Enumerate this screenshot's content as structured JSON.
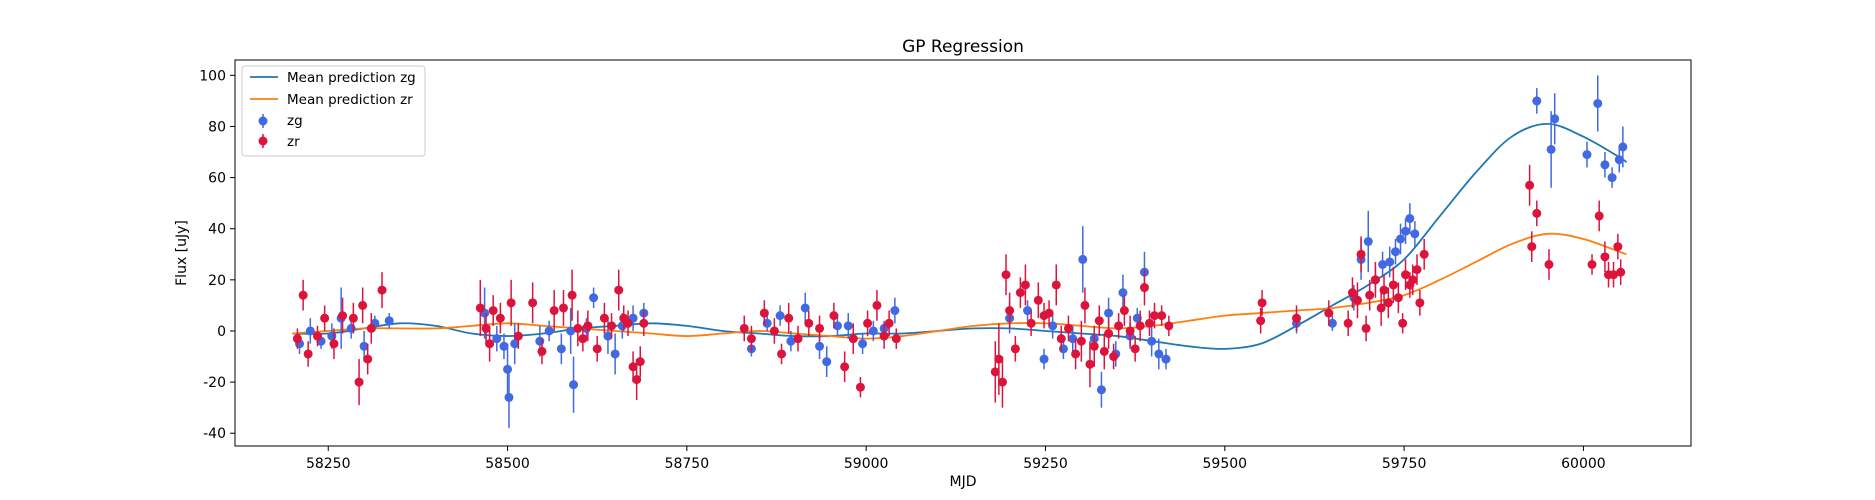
{
  "chart_data": {
    "type": "scatter",
    "title": "GP Regression",
    "xlabel": "MJD",
    "ylabel": "Flux [uJy]",
    "xlim": [
      58120,
      60150
    ],
    "ylim": [
      -45,
      106
    ],
    "xticks": [
      58250,
      58500,
      58750,
      59000,
      59250,
      59500,
      59750,
      60000
    ],
    "yticks": [
      -40,
      -20,
      0,
      20,
      40,
      60,
      80,
      100
    ],
    "legend_position": "upper-left",
    "grid": false,
    "lines": [
      {
        "name": "Mean prediction zg",
        "color": "#1f77b4",
        "x": [
          58200,
          58250,
          58300,
          58350,
          58400,
          58450,
          58500,
          58550,
          58600,
          58650,
          58700,
          58750,
          58800,
          58850,
          58900,
          58950,
          59000,
          59050,
          59100,
          59150,
          59200,
          59250,
          59300,
          59350,
          59400,
          59450,
          59500,
          59550,
          59600,
          59650,
          59700,
          59750,
          59800,
          59850,
          59900,
          59950,
          60000,
          60050,
          60060
        ],
        "y": [
          -1,
          -1,
          1,
          3,
          2,
          -1,
          -2,
          -1,
          1,
          2,
          3,
          2,
          0,
          -1,
          -2,
          -2,
          -1,
          -1,
          0,
          1,
          1,
          0,
          -1,
          -2,
          -4,
          -6,
          -7,
          -5,
          2,
          10,
          18,
          28,
          45,
          62,
          76,
          81,
          76,
          68,
          66
        ]
      },
      {
        "name": "Mean prediction zr",
        "color": "#ff7f0e",
        "x": [
          58200,
          58250,
          58300,
          58350,
          58400,
          58450,
          58500,
          58550,
          58600,
          58650,
          58700,
          58750,
          58800,
          58850,
          58900,
          58950,
          59000,
          59050,
          59100,
          59150,
          59200,
          59250,
          59300,
          59350,
          59400,
          59450,
          59500,
          59550,
          59600,
          59650,
          59700,
          59750,
          59800,
          59850,
          59900,
          59950,
          60000,
          60050,
          60060
        ],
        "y": [
          -1,
          0,
          1,
          1,
          1,
          2,
          3,
          2,
          1,
          0,
          -1,
          -2,
          -1,
          0,
          -1,
          -2,
          -3,
          -2,
          0,
          2,
          3,
          3,
          2,
          1,
          2,
          4,
          6,
          7,
          8,
          9,
          11,
          14,
          20,
          27,
          34,
          38,
          36,
          31,
          30
        ]
      }
    ],
    "series": [
      {
        "name": "zg",
        "color": "#4169e1",
        "points": [
          [
            58210,
            -5,
            4
          ],
          [
            58225,
            0,
            5
          ],
          [
            58240,
            -4,
            3
          ],
          [
            58255,
            -2,
            5
          ],
          [
            58268,
            5,
            12
          ],
          [
            58282,
            1,
            4
          ],
          [
            58300,
            -6,
            6
          ],
          [
            58315,
            3,
            3
          ],
          [
            58335,
            4,
            3
          ],
          [
            58468,
            7,
            10
          ],
          [
            58485,
            -3,
            5
          ],
          [
            58495,
            -6,
            5
          ],
          [
            58500,
            -15,
            10
          ],
          [
            58502,
            -26,
            12
          ],
          [
            58510,
            -5,
            8
          ],
          [
            58545,
            -4,
            6
          ],
          [
            58558,
            0,
            4
          ],
          [
            58575,
            -7,
            6
          ],
          [
            58588,
            0,
            9
          ],
          [
            58592,
            -21,
            11
          ],
          [
            58610,
            1,
            4
          ],
          [
            58620,
            13,
            4
          ],
          [
            58640,
            -2,
            7
          ],
          [
            58650,
            -9,
            8
          ],
          [
            58660,
            2,
            5
          ],
          [
            58675,
            5,
            5
          ],
          [
            58690,
            7,
            4
          ],
          [
            58840,
            -7,
            3
          ],
          [
            58862,
            3,
            3
          ],
          [
            58880,
            6,
            4
          ],
          [
            58895,
            -4,
            4
          ],
          [
            58915,
            9,
            6
          ],
          [
            58935,
            -6,
            5
          ],
          [
            58945,
            -12,
            6
          ],
          [
            58960,
            2,
            4
          ],
          [
            58975,
            2,
            5
          ],
          [
            58995,
            -5,
            4
          ],
          [
            59010,
            0,
            4
          ],
          [
            59025,
            1,
            3
          ],
          [
            59040,
            8,
            5
          ],
          [
            59200,
            5,
            6
          ],
          [
            59225,
            8,
            4
          ],
          [
            59248,
            -11,
            4
          ],
          [
            59260,
            2,
            5
          ],
          [
            59275,
            -7,
            4
          ],
          [
            59288,
            -3,
            5
          ],
          [
            59302,
            28,
            13
          ],
          [
            59318,
            -3,
            5
          ],
          [
            59328,
            -23,
            7
          ],
          [
            59338,
            7,
            6
          ],
          [
            59348,
            -9,
            5
          ],
          [
            59358,
            15,
            7
          ],
          [
            59368,
            -2,
            5
          ],
          [
            59378,
            5,
            4
          ],
          [
            59388,
            23,
            8
          ],
          [
            59398,
            -4,
            6
          ],
          [
            59408,
            -9,
            6
          ],
          [
            59418,
            -11,
            4
          ],
          [
            59600,
            3,
            4
          ],
          [
            59650,
            3,
            3
          ],
          [
            59680,
            13,
            5
          ],
          [
            59690,
            28,
            8
          ],
          [
            59700,
            35,
            12
          ],
          [
            59710,
            20,
            5
          ],
          [
            59720,
            26,
            5
          ],
          [
            59730,
            27,
            6
          ],
          [
            59738,
            31,
            5
          ],
          [
            59745,
            36,
            6
          ],
          [
            59752,
            39,
            5
          ],
          [
            59758,
            44,
            6
          ],
          [
            59765,
            38,
            5
          ],
          [
            59935,
            90,
            5
          ],
          [
            59955,
            71,
            15
          ],
          [
            59960,
            83,
            10
          ],
          [
            60005,
            69,
            5
          ],
          [
            60020,
            89,
            11
          ],
          [
            60030,
            65,
            5
          ],
          [
            60040,
            60,
            4
          ],
          [
            60050,
            67,
            5
          ],
          [
            60055,
            72,
            8
          ]
        ]
      },
      {
        "name": "zr",
        "color": "#dc143c",
        "points": [
          [
            58207,
            -3,
            4
          ],
          [
            58215,
            14,
            6
          ],
          [
            58222,
            -9,
            5
          ],
          [
            58235,
            -2,
            4
          ],
          [
            58245,
            5,
            5
          ],
          [
            58258,
            -5,
            6
          ],
          [
            58270,
            6,
            7
          ],
          [
            58285,
            5,
            6
          ],
          [
            58293,
            -20,
            9
          ],
          [
            58298,
            10,
            7
          ],
          [
            58305,
            -11,
            6
          ],
          [
            58310,
            1,
            6
          ],
          [
            58325,
            16,
            7
          ],
          [
            58462,
            9,
            11
          ],
          [
            58470,
            1,
            6
          ],
          [
            58475,
            -5,
            7
          ],
          [
            58480,
            8,
            6
          ],
          [
            58490,
            5,
            6
          ],
          [
            58505,
            11,
            9
          ],
          [
            58515,
            -2,
            5
          ],
          [
            58535,
            11,
            8
          ],
          [
            58548,
            -8,
            5
          ],
          [
            58565,
            8,
            8
          ],
          [
            58578,
            9,
            7
          ],
          [
            58590,
            14,
            10
          ],
          [
            58598,
            1,
            7
          ],
          [
            58605,
            -3,
            5
          ],
          [
            58612,
            2,
            6
          ],
          [
            58625,
            -7,
            5
          ],
          [
            58635,
            5,
            6
          ],
          [
            58645,
            2,
            5
          ],
          [
            58655,
            16,
            8
          ],
          [
            58662,
            5,
            5
          ],
          [
            58668,
            3,
            5
          ],
          [
            58675,
            -14,
            6
          ],
          [
            58680,
            -19,
            8
          ],
          [
            58685,
            -12,
            6
          ],
          [
            58690,
            3,
            5
          ],
          [
            58830,
            1,
            5
          ],
          [
            58840,
            -3,
            5
          ],
          [
            58858,
            7,
            5
          ],
          [
            58872,
            0,
            5
          ],
          [
            58882,
            -9,
            4
          ],
          [
            58892,
            5,
            6
          ],
          [
            58905,
            -3,
            5
          ],
          [
            58920,
            3,
            5
          ],
          [
            58935,
            1,
            5
          ],
          [
            58955,
            6,
            5
          ],
          [
            58970,
            -14,
            6
          ],
          [
            58982,
            -3,
            6
          ],
          [
            58992,
            -22,
            4
          ],
          [
            59002,
            3,
            5
          ],
          [
            59015,
            10,
            6
          ],
          [
            59025,
            -2,
            5
          ],
          [
            59032,
            3,
            5
          ],
          [
            59042,
            -3,
            4
          ],
          [
            59180,
            -16,
            12
          ],
          [
            59185,
            -11,
            14
          ],
          [
            59190,
            -20,
            10
          ],
          [
            59195,
            22,
            8
          ],
          [
            59200,
            8,
            7
          ],
          [
            59208,
            -7,
            5
          ],
          [
            59215,
            15,
            6
          ],
          [
            59222,
            18,
            8
          ],
          [
            59230,
            3,
            5
          ],
          [
            59240,
            12,
            7
          ],
          [
            59248,
            6,
            5
          ],
          [
            59255,
            7,
            5
          ],
          [
            59265,
            18,
            8
          ],
          [
            59272,
            -3,
            5
          ],
          [
            59282,
            1,
            5
          ],
          [
            59292,
            -9,
            6
          ],
          [
            59300,
            -4,
            8
          ],
          [
            59305,
            10,
            7
          ],
          [
            59312,
            -13,
            9
          ],
          [
            59318,
            -6,
            8
          ],
          [
            59325,
            4,
            6
          ],
          [
            59332,
            -8,
            7
          ],
          [
            59338,
            -1,
            6
          ],
          [
            59345,
            -10,
            5
          ],
          [
            59352,
            2,
            5
          ],
          [
            59360,
            8,
            6
          ],
          [
            59368,
            0,
            6
          ],
          [
            59375,
            -7,
            5
          ],
          [
            59382,
            2,
            6
          ],
          [
            59388,
            17,
            7
          ],
          [
            59395,
            3,
            5
          ],
          [
            59402,
            6,
            5
          ],
          [
            59412,
            6,
            4
          ],
          [
            59422,
            2,
            4
          ],
          [
            59550,
            4,
            5
          ],
          [
            59552,
            11,
            5
          ],
          [
            59600,
            5,
            5
          ],
          [
            59645,
            7,
            5
          ],
          [
            59672,
            3,
            5
          ],
          [
            59678,
            15,
            6
          ],
          [
            59685,
            12,
            7
          ],
          [
            59690,
            30,
            7
          ],
          [
            59697,
            1,
            5
          ],
          [
            59702,
            14,
            6
          ],
          [
            59710,
            20,
            7
          ],
          [
            59718,
            9,
            7
          ],
          [
            59722,
            16,
            6
          ],
          [
            59728,
            11,
            6
          ],
          [
            59735,
            18,
            7
          ],
          [
            59742,
            13,
            6
          ],
          [
            59748,
            3,
            4
          ],
          [
            59752,
            22,
            6
          ],
          [
            59758,
            18,
            5
          ],
          [
            59762,
            20,
            6
          ],
          [
            59768,
            24,
            6
          ],
          [
            59772,
            11,
            5
          ],
          [
            59778,
            30,
            6
          ],
          [
            59925,
            57,
            8
          ],
          [
            59928,
            33,
            6
          ],
          [
            59935,
            46,
            5
          ],
          [
            59952,
            26,
            6
          ],
          [
            60012,
            26,
            4
          ],
          [
            60022,
            45,
            6
          ],
          [
            60030,
            29,
            6
          ],
          [
            60035,
            22,
            5
          ],
          [
            60042,
            22,
            5
          ],
          [
            60048,
            33,
            5
          ],
          [
            60052,
            23,
            5
          ]
        ]
      }
    ]
  }
}
